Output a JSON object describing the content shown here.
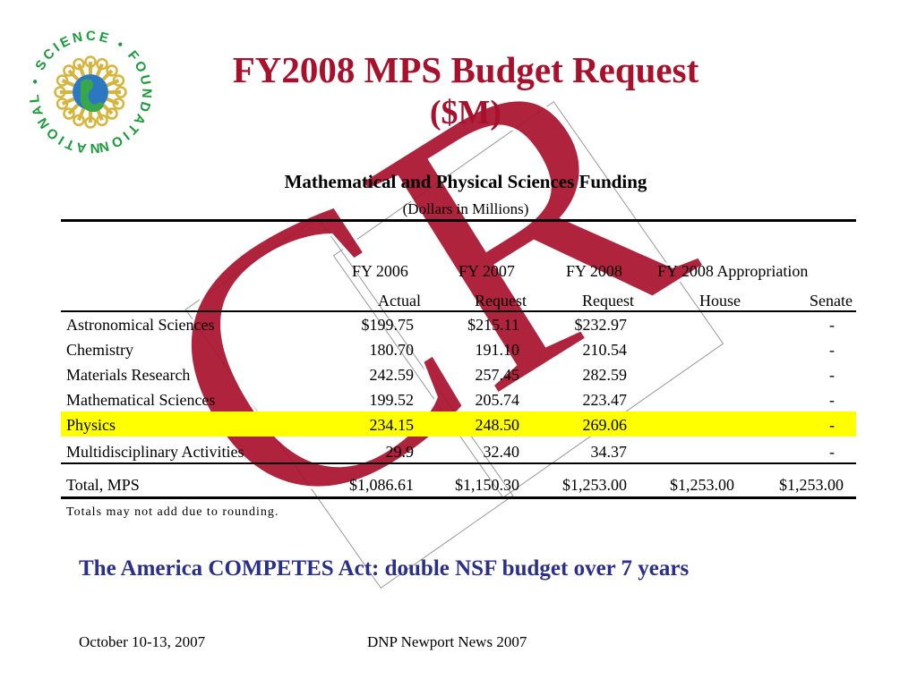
{
  "slide": {
    "title_line1": "FY2008 MPS Budget Request",
    "title_line2": "($M)"
  },
  "logo": {
    "ring_text": "NATIONAL • SCIENCE • FOUNDATION •",
    "colors": {
      "text": "#1a9c3a",
      "rays": "#d7b43a",
      "globe": "#2c78c0"
    }
  },
  "watermark": {
    "text": "CR",
    "color": "#a8102c"
  },
  "table": {
    "title": "Mathematical and Physical Sciences Funding",
    "subtitle": "(Dollars in Millions)",
    "headers_top": [
      "FY 2006",
      "FY 2007",
      "FY 2008",
      "FY 2008 Appropriation"
    ],
    "headers_bottom": [
      "Actual",
      "Request",
      "Request",
      "House",
      "Senate"
    ],
    "rows": [
      {
        "label": "Astronomical Sciences",
        "fy2006": "$199.75",
        "fy2007": "$215.11",
        "fy2008": "$232.97",
        "house": "",
        "senate": "-"
      },
      {
        "label": "Chemistry",
        "fy2006": "180.70",
        "fy2007": "191.10",
        "fy2008": "210.54",
        "house": "",
        "senate": "-"
      },
      {
        "label": "Materials Research",
        "fy2006": "242.59",
        "fy2007": "257.45",
        "fy2008": "282.59",
        "house": "",
        "senate": "-"
      },
      {
        "label": "Mathematical Sciences",
        "fy2006": "199.52",
        "fy2007": "205.74",
        "fy2008": "223.47",
        "house": "",
        "senate": "-"
      },
      {
        "label": "Physics",
        "fy2006": "234.15",
        "fy2007": "248.50",
        "fy2008": "269.06",
        "house": "",
        "senate": "-"
      },
      {
        "label": "Multidisciplinary Activities",
        "fy2006": "29.9",
        "fy2007": "32.40",
        "fy2008": "34.37",
        "house": "",
        "senate": "-"
      }
    ],
    "total": {
      "label": "Total, MPS",
      "fy2006": "$1,086.61",
      "fy2007": "$1,150.30",
      "fy2008": "$1,253.00",
      "house": "$1,253.00",
      "senate": "$1,253.00"
    },
    "highlight_color": "#ffff00",
    "note": "Totals may not add due to rounding."
  },
  "competes_text": "The America COMPETES Act: double NSF budget over 7 years",
  "footer": {
    "date": "October 10-13, 2007",
    "event": "DNP Newport News 2007"
  }
}
